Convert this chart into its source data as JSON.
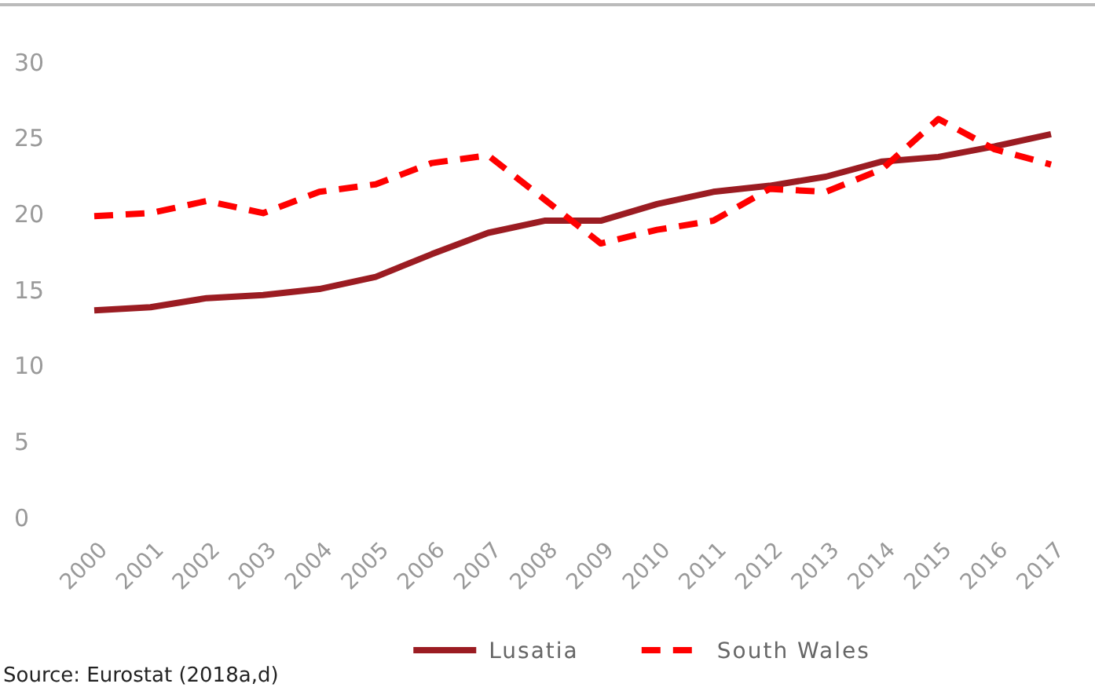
{
  "chart_data": {
    "type": "line",
    "x": [
      "2000",
      "2001",
      "2002",
      "2003",
      "2004",
      "2005",
      "2006",
      "2007",
      "2008",
      "2009",
      "2010",
      "2011",
      "2012",
      "2013",
      "2014",
      "2015",
      "2016",
      "2017"
    ],
    "series": [
      {
        "name": "Lusatia",
        "color": "#9b1c22",
        "line_style": "solid",
        "values": [
          13.7,
          13.9,
          14.5,
          14.7,
          15.1,
          15.9,
          17.4,
          18.8,
          19.6,
          19.6,
          20.7,
          21.5,
          21.9,
          22.5,
          23.5,
          23.8,
          24.5,
          25.3
        ]
      },
      {
        "name": "South Wales",
        "color": "#ff0000",
        "line_style": "dashed",
        "values": [
          19.9,
          20.1,
          20.9,
          20.1,
          21.5,
          22.0,
          23.4,
          23.9,
          21.0,
          18.1,
          19.0,
          19.6,
          21.7,
          21.5,
          23.0,
          26.3,
          24.3,
          23.3
        ]
      }
    ],
    "ylim": [
      0,
      30
    ],
    "yticks": [
      0,
      5,
      10,
      15,
      20,
      25,
      30
    ],
    "grid": false,
    "legend": "bottom",
    "marker": "none",
    "annotations": [
      "Source: Eurostat (2018a,d)"
    ]
  }
}
